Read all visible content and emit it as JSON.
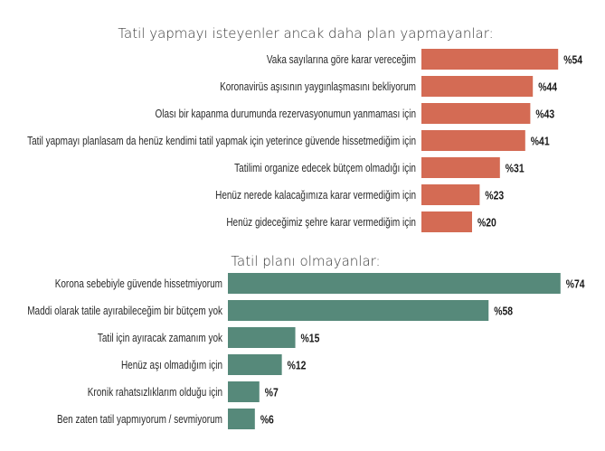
{
  "chart_data": [
    {
      "type": "bar",
      "orientation": "horizontal",
      "title": "Tatil yapmayı isteyenler ancak daha plan yapmayanlar:",
      "color": "#d46b54",
      "value_prefix": "%",
      "categories": [
        "Vaka sayılarına göre karar vereceğim",
        "Koronavirüs aşısının yaygınlaşmasını bekliyorum",
        "Olası bir kapanma durumunda rezervasyonumun yanmaması için",
        "Tatil yapmayı planlasam da henüz kendimi tatil yapmak için yeterince güvende hissetmediğim için",
        "Tatilimi organize edecek bütçem olmadığı için",
        "Henüz nerede kalacağımıza karar vermediğim için",
        "Henüz gideceğimiz şehre karar vermediğim için"
      ],
      "values": [
        54,
        44,
        43,
        41,
        31,
        23,
        20
      ],
      "data_labels": [
        "%54",
        "%44",
        "%43",
        "%41",
        "%31",
        "%23",
        "%20"
      ]
    },
    {
      "type": "bar",
      "orientation": "horizontal",
      "title": "Tatil planı olmayanlar:",
      "color": "#56897a",
      "value_prefix": "%",
      "categories": [
        "Korona sebebiyle güvende hissetmiyorum",
        "Maddi olarak tatile ayırabileceğim bir bütçem yok",
        "Tatil için ayıracak zamanım yok",
        "Henüz aşı olmadığım için",
        "Kronik rahatsızlıklarım olduğu için",
        "Ben zaten tatil yapmıyorum / sevmiyorum"
      ],
      "values": [
        74,
        58,
        15,
        12,
        7,
        6
      ],
      "data_labels": [
        "%74",
        "%58",
        "%15",
        "%12",
        "%7",
        "%6"
      ]
    }
  ]
}
